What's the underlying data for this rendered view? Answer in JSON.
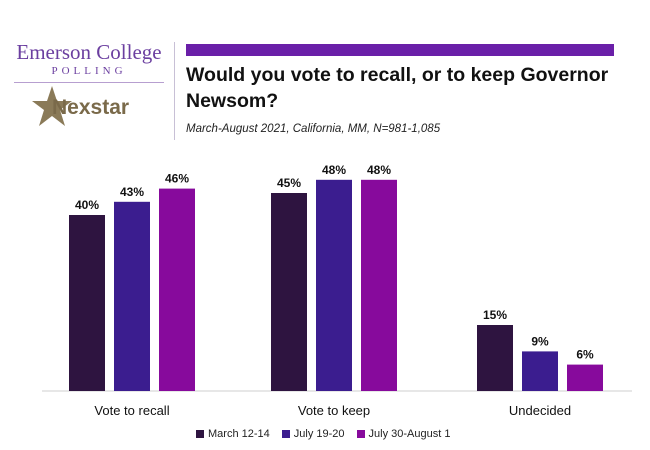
{
  "logo": {
    "line1": "Emerson College",
    "line2": "POLLING",
    "partner": "Nexstar"
  },
  "chart_data": {
    "type": "bar",
    "title": "Would you vote to recall, or to keep Governor Newsom?",
    "subtitle": "March-August 2021, California, MM,  N=981-1,085",
    "categories": [
      "Vote to recall",
      "Vote to keep",
      "Undecided"
    ],
    "series": [
      {
        "name": "March 12-14",
        "color": "#2e1440",
        "values": [
          40,
          45,
          15
        ],
        "labels": [
          "40%",
          "45%",
          "15%"
        ]
      },
      {
        "name": "July 19-20",
        "color": "#3b1d8f",
        "values": [
          43,
          48,
          9
        ],
        "labels": [
          "43%",
          "48%",
          "9%"
        ]
      },
      {
        "name": "July 30-August 1",
        "color": "#870a9c",
        "values": [
          46,
          48,
          6
        ],
        "labels": [
          "46%",
          "48%",
          "6%"
        ]
      }
    ],
    "ylim": [
      0,
      60
    ],
    "grid": false,
    "legend_position": "bottom"
  }
}
